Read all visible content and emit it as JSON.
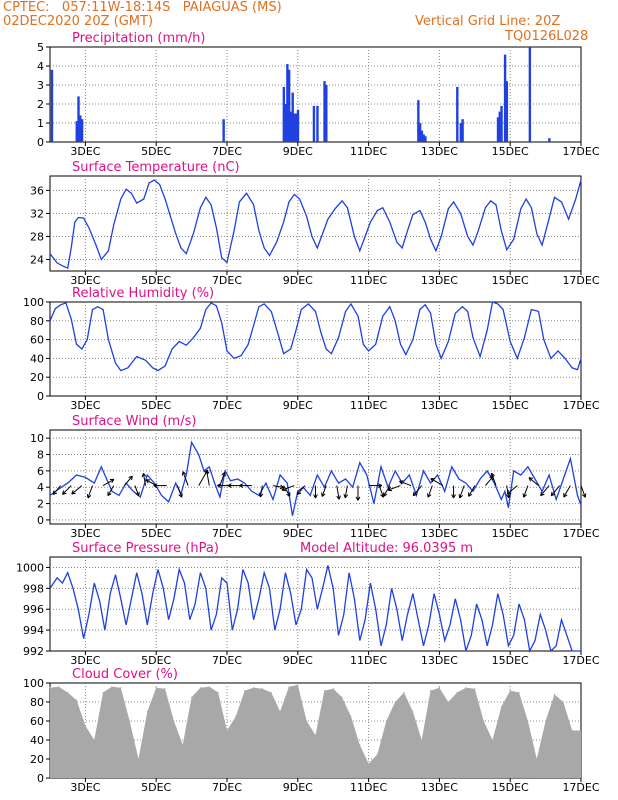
{
  "header": {
    "line1": "CPTEC:   057:11W-18:14S   PAIAGUAS (MS)",
    "line2": "02DEC2020 20Z (GMT)",
    "grid_note": "Vertical Grid Line: 20Z",
    "code": "TQ0126L028"
  },
  "colors": {
    "header": "#e07020",
    "title": "#e0108a",
    "series": "#2040e0",
    "cloud": "#a8a8a8",
    "arrow": "#000000"
  },
  "x_ticks": [
    "3DEC",
    "5DEC",
    "7DEC",
    "9DEC",
    "11DEC",
    "13DEC",
    "15DEC",
    "17DEC"
  ],
  "x_tick_days": [
    3,
    5,
    7,
    9,
    11,
    13,
    15,
    17
  ],
  "x_range_days": [
    2.0,
    17.0
  ],
  "chart_data": [
    {
      "type": "bar",
      "title": "Precipitation (mm/h)",
      "ylim": [
        0,
        5
      ],
      "yticks": [
        0,
        1,
        2,
        3,
        4,
        5
      ],
      "x": [
        2.05,
        2.75,
        2.8,
        2.85,
        2.9,
        6.9,
        8.6,
        8.65,
        8.7,
        8.75,
        8.8,
        8.85,
        8.9,
        8.95,
        9.0,
        9.45,
        9.55,
        9.75,
        9.8,
        12.4,
        12.45,
        12.5,
        12.55,
        12.6,
        13.5,
        13.6,
        13.65,
        14.65,
        14.7,
        14.75,
        14.85,
        14.9,
        15.55,
        16.1
      ],
      "values": [
        3.8,
        1.1,
        2.4,
        1.4,
        1.2,
        1.2,
        2.9,
        2.0,
        4.1,
        3.8,
        1.6,
        2.6,
        1.5,
        1.5,
        1.7,
        1.9,
        1.9,
        3.2,
        3.0,
        2.2,
        1.0,
        0.6,
        0.4,
        0.3,
        2.9,
        1.0,
        1.2,
        1.3,
        1.6,
        1.9,
        4.6,
        3.2,
        5.0,
        0.2
      ]
    },
    {
      "type": "line",
      "title": "Surface Temperature (nC)",
      "ylim": [
        22,
        38.5
      ],
      "yticks": [
        24,
        28,
        32,
        36
      ],
      "x": [
        2.0,
        2.2,
        2.35,
        2.5,
        2.6,
        2.7,
        2.8,
        2.95,
        3.1,
        3.3,
        3.45,
        3.65,
        3.8,
        4.0,
        4.15,
        4.3,
        4.45,
        4.65,
        4.8,
        4.95,
        5.1,
        5.25,
        5.4,
        5.55,
        5.7,
        5.85,
        6.05,
        6.25,
        6.4,
        6.55,
        6.7,
        6.85,
        7.0,
        7.2,
        7.35,
        7.55,
        7.75,
        7.9,
        8.05,
        8.2,
        8.4,
        8.6,
        8.75,
        8.9,
        9.05,
        9.25,
        9.4,
        9.55,
        9.7,
        9.85,
        10.05,
        10.25,
        10.4,
        10.6,
        10.75,
        10.9,
        11.05,
        11.25,
        11.4,
        11.6,
        11.8,
        11.95,
        12.1,
        12.25,
        12.45,
        12.6,
        12.75,
        12.9,
        13.05,
        13.25,
        13.4,
        13.6,
        13.8,
        13.95,
        14.1,
        14.3,
        14.45,
        14.6,
        14.75,
        14.9,
        15.1,
        15.3,
        15.45,
        15.6,
        15.75,
        15.9,
        16.05,
        16.25,
        16.45,
        16.65,
        16.85,
        17.0
      ],
      "values": [
        25.0,
        23.4,
        22.9,
        22.5,
        26.0,
        30.5,
        31.3,
        31.2,
        29.5,
        26.5,
        24.0,
        25.5,
        30.0,
        34.5,
        36.2,
        35.5,
        33.8,
        34.5,
        37.3,
        37.8,
        37.0,
        34.5,
        31.5,
        28.5,
        26.0,
        25.0,
        28.5,
        33.0,
        34.8,
        33.5,
        29.5,
        24.3,
        23.5,
        29.0,
        34.0,
        35.5,
        33.5,
        29.0,
        26.0,
        24.7,
        27.0,
        30.5,
        34.0,
        35.3,
        34.5,
        31.5,
        28.0,
        26.0,
        28.5,
        31.0,
        32.8,
        34.2,
        33.0,
        28.0,
        25.5,
        28.0,
        30.5,
        32.5,
        33.0,
        30.5,
        27.0,
        26.0,
        29.0,
        31.8,
        32.5,
        30.5,
        27.5,
        25.5,
        28.0,
        32.8,
        34.0,
        32.0,
        28.0,
        26.5,
        29.0,
        33.0,
        34.2,
        33.5,
        29.0,
        25.7,
        27.5,
        32.8,
        34.5,
        33.0,
        28.5,
        26.5,
        30.0,
        34.8,
        34.0,
        31.0,
        34.5,
        37.8
      ]
    },
    {
      "type": "line",
      "title": "Relative Humidity (%)",
      "ylim": [
        0,
        100
      ],
      "yticks": [
        0,
        20,
        40,
        60,
        80,
        100
      ],
      "x": [
        2.0,
        2.15,
        2.3,
        2.45,
        2.6,
        2.75,
        2.9,
        3.05,
        3.2,
        3.35,
        3.5,
        3.65,
        3.85,
        4.0,
        4.2,
        4.45,
        4.7,
        4.9,
        5.05,
        5.25,
        5.45,
        5.65,
        5.85,
        6.05,
        6.25,
        6.4,
        6.55,
        6.7,
        6.85,
        7.0,
        7.2,
        7.4,
        7.6,
        7.75,
        7.9,
        8.05,
        8.25,
        8.45,
        8.6,
        8.8,
        8.95,
        9.1,
        9.3,
        9.5,
        9.65,
        9.8,
        9.95,
        10.15,
        10.35,
        10.5,
        10.7,
        10.85,
        11.0,
        11.2,
        11.4,
        11.6,
        11.75,
        11.9,
        12.05,
        12.25,
        12.45,
        12.6,
        12.75,
        12.9,
        13.05,
        13.25,
        13.45,
        13.65,
        13.8,
        13.95,
        14.15,
        14.35,
        14.5,
        14.65,
        14.8,
        15.0,
        15.2,
        15.4,
        15.6,
        15.8,
        15.95,
        16.15,
        16.35,
        16.55,
        16.75,
        16.9,
        17.0
      ],
      "values": [
        80,
        93,
        97,
        99,
        82,
        55,
        50,
        60,
        92,
        95,
        92,
        60,
        35,
        27,
        30,
        42,
        38,
        30,
        27,
        32,
        50,
        58,
        54,
        62,
        72,
        92,
        99,
        96,
        78,
        48,
        40,
        43,
        55,
        75,
        95,
        98,
        90,
        65,
        45,
        50,
        70,
        92,
        98,
        90,
        68,
        50,
        45,
        62,
        90,
        98,
        85,
        55,
        48,
        55,
        85,
        95,
        80,
        55,
        44,
        60,
        92,
        97,
        88,
        55,
        40,
        58,
        88,
        95,
        90,
        62,
        42,
        70,
        100,
        98,
        92,
        58,
        40,
        62,
        92,
        90,
        60,
        40,
        48,
        40,
        30,
        28,
        40
      ]
    },
    {
      "type": "line",
      "title": "Surface Wind (m/s)",
      "ylim": [
        -0.5,
        11
      ],
      "yticks": [
        0,
        2,
        4,
        6,
        8,
        10
      ],
      "x": [
        2.0,
        2.25,
        2.5,
        2.75,
        3.0,
        3.25,
        3.45,
        3.6,
        3.75,
        3.95,
        4.15,
        4.35,
        4.55,
        4.75,
        4.95,
        5.15,
        5.35,
        5.55,
        5.7,
        5.85,
        6.0,
        6.2,
        6.35,
        6.5,
        6.65,
        6.8,
        6.95,
        7.1,
        7.3,
        7.5,
        7.7,
        7.9,
        8.1,
        8.3,
        8.5,
        8.7,
        8.85,
        9.0,
        9.15,
        9.35,
        9.55,
        9.75,
        9.95,
        10.15,
        10.35,
        10.55,
        10.75,
        10.95,
        11.15,
        11.35,
        11.55,
        11.75,
        11.95,
        12.15,
        12.35,
        12.55,
        12.75,
        12.95,
        13.15,
        13.35,
        13.55,
        13.75,
        13.95,
        14.15,
        14.35,
        14.55,
        14.75,
        14.85,
        14.95,
        15.1,
        15.3,
        15.5,
        15.7,
        15.9,
        16.1,
        16.3,
        16.5,
        16.7,
        16.9,
        17.0
      ],
      "values": [
        3.0,
        3.8,
        4.5,
        5.5,
        5.2,
        4.5,
        6.5,
        5.0,
        3.5,
        3.0,
        4.5,
        3.5,
        2.8,
        5.5,
        4.5,
        3.0,
        2.2,
        4.5,
        3.2,
        5.5,
        9.5,
        8.0,
        6.0,
        6.5,
        4.5,
        2.8,
        6.0,
        4.8,
        5.0,
        4.5,
        3.5,
        3.0,
        4.5,
        2.5,
        5.5,
        4.5,
        0.5,
        3.5,
        4.0,
        3.0,
        5.5,
        4.0,
        6.0,
        4.5,
        5.0,
        4.0,
        7.0,
        5.5,
        2.0,
        6.5,
        4.0,
        6.0,
        4.5,
        5.5,
        3.0,
        6.0,
        4.5,
        5.5,
        3.5,
        6.5,
        5.0,
        4.5,
        3.5,
        5.0,
        6.0,
        4.5,
        2.5,
        3.5,
        1.5,
        6.0,
        5.5,
        6.5,
        5.0,
        3.5,
        5.5,
        2.5,
        5.0,
        7.5,
        3.0,
        1.8
      ],
      "arrows_x": [
        2.3,
        2.6,
        2.9,
        3.2,
        3.5,
        3.8,
        4.1,
        4.4,
        4.7,
        5.0,
        5.3,
        5.6,
        5.9,
        6.2,
        6.5,
        6.8,
        7.1,
        7.4,
        7.7,
        8.0,
        8.3,
        8.6,
        8.9,
        9.2,
        9.5,
        9.8,
        10.1,
        10.4,
        10.7,
        11.0,
        11.3,
        11.6,
        11.9,
        12.2,
        12.5,
        12.8,
        13.1,
        13.4,
        13.7,
        14.0,
        14.3,
        14.6,
        14.9,
        15.2,
        15.5,
        15.8,
        16.1,
        16.4,
        16.7,
        17.0
      ],
      "arrows_dir": [
        220,
        225,
        230,
        200,
        60,
        210,
        40,
        160,
        350,
        300,
        270,
        160,
        340,
        30,
        350,
        20,
        270,
        270,
        270,
        190,
        100,
        150,
        250,
        220,
        180,
        200,
        170,
        190,
        180,
        90,
        160,
        210,
        250,
        290,
        220,
        200,
        300,
        180,
        200,
        210,
        40,
        340,
        170,
        230,
        200,
        310,
        220,
        220,
        210,
        160
      ],
      "arrows_speed": [
        3.5,
        4.0,
        4.5,
        4.5,
        4.0,
        3.5,
        4.0,
        3.0,
        4.0,
        3.5,
        4.5,
        4.0,
        5.5,
        7.5,
        6.0,
        5.0,
        4.5,
        4.5,
        4.0,
        3.5,
        3.0,
        4.0,
        4.5,
        3.5,
        4.0,
        3.5,
        5.0,
        4.0,
        5.5,
        4.5,
        4.0,
        4.0,
        4.5,
        4.0,
        4.5,
        4.0,
        5.0,
        4.0,
        4.5,
        4.0,
        4.0,
        4.5,
        4.0,
        4.5,
        4.0,
        4.0,
        4.5,
        4.5,
        4.5,
        4.0
      ]
    },
    {
      "type": "line",
      "title": "Surface Pressure (hPa)",
      "subtitle": "Model Altitude: 96.0395 m",
      "ylim": [
        992,
        1001
      ],
      "yticks": [
        992,
        994,
        996,
        998,
        1000
      ],
      "x": [
        2.0,
        2.2,
        2.35,
        2.5,
        2.65,
        2.8,
        2.95,
        3.1,
        3.25,
        3.4,
        3.55,
        3.7,
        3.85,
        4.0,
        4.15,
        4.3,
        4.45,
        4.6,
        4.75,
        4.9,
        5.05,
        5.2,
        5.35,
        5.5,
        5.65,
        5.8,
        5.95,
        6.1,
        6.25,
        6.4,
        6.55,
        6.7,
        6.85,
        7.0,
        7.15,
        7.3,
        7.45,
        7.6,
        7.75,
        7.9,
        8.05,
        8.2,
        8.35,
        8.5,
        8.65,
        8.8,
        8.95,
        9.1,
        9.25,
        9.4,
        9.55,
        9.7,
        9.85,
        10.0,
        10.15,
        10.3,
        10.45,
        10.6,
        10.75,
        10.9,
        11.05,
        11.2,
        11.35,
        11.5,
        11.65,
        11.8,
        11.95,
        12.1,
        12.25,
        12.4,
        12.55,
        12.7,
        12.85,
        13.0,
        13.15,
        13.3,
        13.45,
        13.6,
        13.75,
        13.9,
        14.05,
        14.2,
        14.35,
        14.5,
        14.65,
        14.8,
        14.95,
        15.1,
        15.25,
        15.4,
        15.55,
        15.7,
        15.85,
        16.0,
        16.15,
        16.3,
        16.45,
        16.6,
        16.75,
        16.9,
        17.0
      ],
      "values": [
        998.0,
        999.0,
        998.5,
        999.5,
        998.0,
        996.0,
        993.2,
        995.5,
        998.5,
        996.8,
        994.0,
        997.5,
        999.3,
        997.0,
        994.5,
        997.0,
        999.5,
        997.5,
        994.5,
        997.5,
        999.8,
        998.0,
        995.0,
        997.0,
        999.8,
        998.5,
        995.0,
        996.5,
        999.5,
        998.0,
        994.0,
        995.5,
        999.0,
        998.5,
        994.0,
        996.0,
        999.8,
        998.5,
        995.0,
        997.0,
        999.5,
        998.0,
        994.0,
        996.0,
        999.5,
        997.5,
        994.5,
        996.0,
        999.8,
        999.0,
        996.0,
        998.0,
        1000.2,
        998.0,
        993.5,
        995.5,
        999.5,
        997.0,
        993.0,
        995.0,
        998.5,
        996.0,
        992.5,
        994.5,
        998.0,
        996.0,
        993.0,
        995.5,
        997.5,
        995.0,
        992.5,
        994.5,
        997.5,
        995.5,
        993.0,
        994.5,
        997.0,
        995.0,
        992.0,
        993.5,
        996.5,
        995.0,
        992.5,
        994.5,
        997.5,
        995.5,
        992.5,
        993.5,
        996.5,
        995.0,
        992.0,
        993.0,
        995.5,
        994.0,
        992.0,
        992.5,
        995.0,
        993.5,
        992.0,
        992.0,
        992.0
      ]
    },
    {
      "type": "bar",
      "title": "Cloud Cover (%)",
      "ylim": [
        0,
        100
      ],
      "yticks": [
        0,
        20,
        40,
        60,
        80,
        100
      ],
      "x": [
        2.0,
        2.25,
        2.5,
        2.75,
        3.0,
        3.25,
        3.5,
        3.75,
        4.0,
        4.25,
        4.5,
        4.75,
        5.0,
        5.25,
        5.5,
        5.75,
        6.0,
        6.25,
        6.5,
        6.75,
        7.0,
        7.25,
        7.5,
        7.75,
        8.0,
        8.25,
        8.5,
        8.75,
        9.0,
        9.25,
        9.5,
        9.75,
        10.0,
        10.25,
        10.5,
        10.75,
        11.0,
        11.25,
        11.5,
        11.75,
        12.0,
        12.25,
        12.5,
        12.75,
        13.0,
        13.25,
        13.5,
        13.75,
        14.0,
        14.25,
        14.5,
        14.75,
        15.0,
        15.25,
        15.5,
        15.75,
        16.0,
        16.25,
        16.5,
        16.75
      ],
      "values": [
        95,
        96,
        90,
        82,
        55,
        40,
        90,
        96,
        95,
        60,
        20,
        70,
        95,
        94,
        60,
        35,
        85,
        95,
        96,
        90,
        50,
        65,
        92,
        95,
        94,
        90,
        70,
        96,
        98,
        60,
        45,
        92,
        94,
        85,
        65,
        35,
        15,
        25,
        60,
        80,
        90,
        70,
        40,
        92,
        95,
        80,
        90,
        95,
        94,
        60,
        40,
        75,
        92,
        90,
        60,
        20,
        60,
        88,
        80,
        50
      ]
    }
  ]
}
